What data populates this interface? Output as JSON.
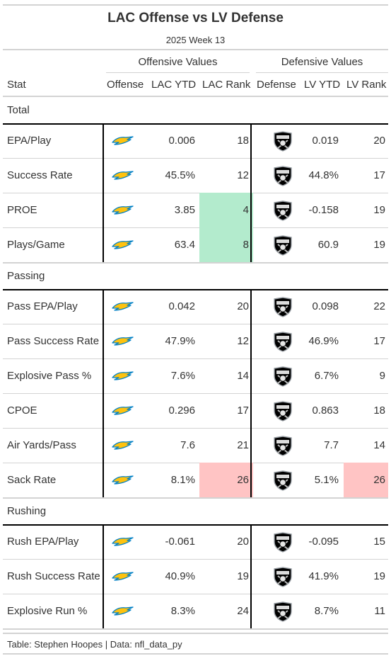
{
  "title": "LAC Offense vs LV Defense",
  "subtitle": "2025 Week 13",
  "spanners": {
    "offense": "Offensive Values",
    "defense": "Defensive Values"
  },
  "columns": {
    "stat": "Stat",
    "offense": "Offense",
    "lac_ytd": "LAC YTD",
    "lac_rank": "LAC Rank",
    "defense": "Defense",
    "lv_ytd": "LV YTD",
    "lv_rank": "LV Rank"
  },
  "icons": {
    "offense_logo": "chargers-bolt-icon",
    "defense_logo": "raiders-shield-icon"
  },
  "colors": {
    "good_rank": "#b3ebcd",
    "bad_rank": "#ffc4c4",
    "bolt_blue": "#0080c6",
    "bolt_gold": "#ffc20e"
  },
  "groups": [
    {
      "name": "Total",
      "rows": [
        {
          "stat": "EPA/Play",
          "lac_ytd": "0.006",
          "lac_rank": "18",
          "lv_ytd": "0.019",
          "lv_rank": "20",
          "lac_hl": "",
          "lv_hl": ""
        },
        {
          "stat": "Success Rate",
          "lac_ytd": "45.5%",
          "lac_rank": "12",
          "lv_ytd": "44.8%",
          "lv_rank": "17",
          "lac_hl": "",
          "lv_hl": ""
        },
        {
          "stat": "PROE",
          "lac_ytd": "3.85",
          "lac_rank": "4",
          "lv_ytd": "-0.158",
          "lv_rank": "19",
          "lac_hl": "good",
          "lv_hl": ""
        },
        {
          "stat": "Plays/Game",
          "lac_ytd": "63.4",
          "lac_rank": "8",
          "lv_ytd": "60.9",
          "lv_rank": "19",
          "lac_hl": "good",
          "lv_hl": ""
        }
      ]
    },
    {
      "name": "Passing",
      "rows": [
        {
          "stat": "Pass EPA/Play",
          "lac_ytd": "0.042",
          "lac_rank": "20",
          "lv_ytd": "0.098",
          "lv_rank": "22",
          "lac_hl": "",
          "lv_hl": ""
        },
        {
          "stat": "Pass Success Rate",
          "lac_ytd": "47.9%",
          "lac_rank": "12",
          "lv_ytd": "46.9%",
          "lv_rank": "17",
          "lac_hl": "",
          "lv_hl": ""
        },
        {
          "stat": "Explosive Pass %",
          "lac_ytd": "7.6%",
          "lac_rank": "14",
          "lv_ytd": "6.7%",
          "lv_rank": "9",
          "lac_hl": "",
          "lv_hl": ""
        },
        {
          "stat": "CPOE",
          "lac_ytd": "0.296",
          "lac_rank": "17",
          "lv_ytd": "0.863",
          "lv_rank": "18",
          "lac_hl": "",
          "lv_hl": ""
        },
        {
          "stat": "Air Yards/Pass",
          "lac_ytd": "7.6",
          "lac_rank": "21",
          "lv_ytd": "7.7",
          "lv_rank": "14",
          "lac_hl": "",
          "lv_hl": ""
        },
        {
          "stat": "Sack Rate",
          "lac_ytd": "8.1%",
          "lac_rank": "26",
          "lv_ytd": "5.1%",
          "lv_rank": "26",
          "lac_hl": "bad",
          "lv_hl": "bad"
        }
      ]
    },
    {
      "name": "Rushing",
      "rows": [
        {
          "stat": "Rush EPA/Play",
          "lac_ytd": "-0.061",
          "lac_rank": "20",
          "lv_ytd": "-0.095",
          "lv_rank": "15",
          "lac_hl": "",
          "lv_hl": ""
        },
        {
          "stat": "Rush Success Rate",
          "lac_ytd": "40.9%",
          "lac_rank": "19",
          "lv_ytd": "41.9%",
          "lv_rank": "19",
          "lac_hl": "",
          "lv_hl": ""
        },
        {
          "stat": "Explosive Run %",
          "lac_ytd": "8.3%",
          "lac_rank": "24",
          "lv_ytd": "8.7%",
          "lv_rank": "11",
          "lac_hl": "",
          "lv_hl": ""
        }
      ]
    }
  ],
  "footer": "Table: Stephen Hoopes | Data: nfl_data_py"
}
